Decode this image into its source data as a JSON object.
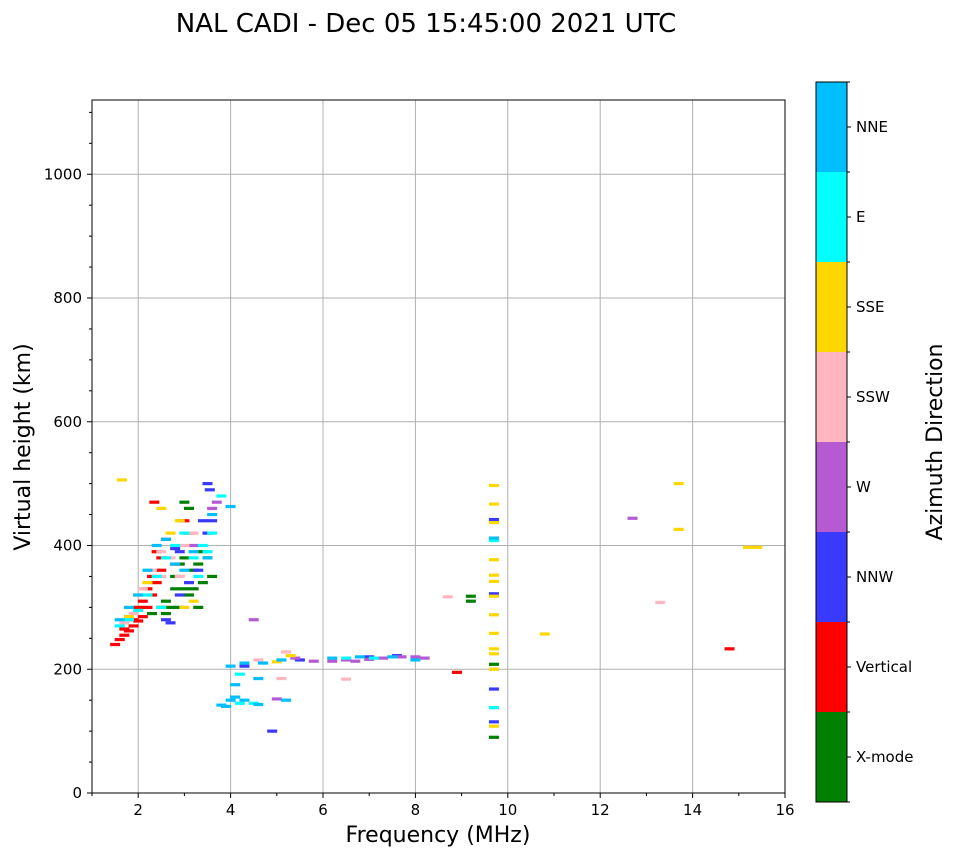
{
  "chart_data": {
    "type": "scatter",
    "title": "NAL CADI - Dec 05 15:45:00 2021 UTC",
    "xlabel": "Frequency (MHz)",
    "ylabel": "Virtual height (km)",
    "xlim": [
      1,
      16
    ],
    "ylim": [
      0,
      1120
    ],
    "xticks": [
      2,
      4,
      6,
      8,
      10,
      12,
      14,
      16
    ],
    "yticks": [
      0,
      200,
      400,
      600,
      800,
      1000
    ],
    "grid": true,
    "colorbar": {
      "label": "Azimuth Direction",
      "position": "right",
      "categories": [
        {
          "name": "X-mode",
          "color": "#008000"
        },
        {
          "name": "Vertical",
          "color": "#ff0000"
        },
        {
          "name": "NNW",
          "color": "#3a3aff"
        },
        {
          "name": "W",
          "color": "#b65ad4"
        },
        {
          "name": "SSW",
          "color": "#ffb6c1"
        },
        {
          "name": "SSE",
          "color": "#ffd700"
        },
        {
          "name": "E",
          "color": "#00ffff"
        },
        {
          "name": "NNE",
          "color": "#00bfff"
        }
      ]
    },
    "series": [
      {
        "name": "X-mode",
        "points": [
          [
            2.3,
            290
          ],
          [
            2.5,
            300
          ],
          [
            2.6,
            310
          ],
          [
            2.7,
            300
          ],
          [
            2.8,
            330
          ],
          [
            2.9,
            300
          ],
          [
            3.0,
            330
          ],
          [
            3.1,
            320
          ],
          [
            3.2,
            360
          ],
          [
            3.3,
            370
          ],
          [
            3.5,
            380
          ],
          [
            2.6,
            290
          ],
          [
            2.8,
            350
          ],
          [
            3.0,
            380
          ],
          [
            3.2,
            330
          ],
          [
            3.4,
            340
          ],
          [
            3.0,
            470
          ],
          [
            3.4,
            390
          ],
          [
            3.6,
            350
          ],
          [
            3.1,
            460
          ],
          [
            9.2,
            318
          ],
          [
            9.2,
            310
          ],
          [
            9.7,
            208
          ],
          [
            9.7,
            90
          ],
          [
            3.3,
            300
          ],
          [
            2.9,
            370
          ]
        ]
      },
      {
        "name": "Vertical",
        "points": [
          [
            1.5,
            240
          ],
          [
            1.6,
            248
          ],
          [
            1.7,
            255
          ],
          [
            1.8,
            262
          ],
          [
            1.9,
            270
          ],
          [
            2.0,
            278
          ],
          [
            2.1,
            285
          ],
          [
            2.2,
            300
          ],
          [
            2.3,
            320
          ],
          [
            2.4,
            340
          ],
          [
            2.5,
            360
          ],
          [
            1.7,
            265
          ],
          [
            1.9,
            280
          ],
          [
            2.1,
            310
          ],
          [
            2.3,
            350
          ],
          [
            2.5,
            380
          ],
          [
            2.0,
            300
          ],
          [
            2.2,
            330
          ],
          [
            2.4,
            390
          ],
          [
            2.6,
            410
          ],
          [
            2.8,
            370
          ],
          [
            3.1,
            420
          ],
          [
            3.0,
            440
          ],
          [
            8.9,
            195
          ],
          [
            14.8,
            233
          ],
          [
            2.35,
            470
          ]
        ]
      },
      {
        "name": "NNW",
        "points": [
          [
            2.6,
            280
          ],
          [
            2.7,
            275
          ],
          [
            2.9,
            320
          ],
          [
            3.1,
            340
          ],
          [
            3.3,
            360
          ],
          [
            3.5,
            420
          ],
          [
            3.5,
            500
          ],
          [
            3.6,
            440
          ],
          [
            3.4,
            440
          ],
          [
            2.9,
            390
          ],
          [
            7.0,
            220
          ],
          [
            7.6,
            222
          ],
          [
            5.5,
            215
          ],
          [
            4.3,
            205
          ],
          [
            9.7,
            442
          ],
          [
            9.7,
            322
          ],
          [
            9.7,
            168
          ],
          [
            9.7,
            115
          ],
          [
            4.9,
            100
          ],
          [
            3.55,
            490
          ],
          [
            2.8,
            395
          ]
        ]
      },
      {
        "name": "W",
        "points": [
          [
            3.7,
            470
          ],
          [
            3.6,
            460
          ],
          [
            4.5,
            280
          ],
          [
            5.8,
            213
          ],
          [
            6.2,
            213
          ],
          [
            6.7,
            213
          ],
          [
            7.0,
            216
          ],
          [
            7.3,
            218
          ],
          [
            7.7,
            220
          ],
          [
            8.0,
            220
          ],
          [
            8.2,
            218
          ],
          [
            6.5,
            215
          ],
          [
            5.0,
            152
          ],
          [
            12.7,
            444
          ],
          [
            5.4,
            218
          ],
          [
            3.2,
            400
          ]
        ]
      },
      {
        "name": "SSW",
        "points": [
          [
            1.7,
            275
          ],
          [
            1.9,
            290
          ],
          [
            2.1,
            330
          ],
          [
            2.3,
            360
          ],
          [
            2.5,
            390
          ],
          [
            2.7,
            380
          ],
          [
            2.9,
            350
          ],
          [
            3.0,
            400
          ],
          [
            3.2,
            420
          ],
          [
            5.2,
            228
          ],
          [
            5.1,
            185
          ],
          [
            6.5,
            184
          ],
          [
            8.7,
            317
          ],
          [
            13.3,
            308
          ],
          [
            4.6,
            215
          ],
          [
            2.5,
            350
          ]
        ]
      },
      {
        "name": "SSE",
        "points": [
          [
            1.65,
            506
          ],
          [
            1.8,
            285
          ],
          [
            2.0,
            320
          ],
          [
            2.2,
            340
          ],
          [
            2.5,
            460
          ],
          [
            2.7,
            420
          ],
          [
            3.0,
            300
          ],
          [
            3.2,
            310
          ],
          [
            5.0,
            212
          ],
          [
            5.3,
            222
          ],
          [
            9.7,
            497
          ],
          [
            9.7,
            467
          ],
          [
            9.7,
            437
          ],
          [
            9.7,
            377
          ],
          [
            9.7,
            352
          ],
          [
            9.7,
            342
          ],
          [
            9.7,
            318
          ],
          [
            9.7,
            288
          ],
          [
            9.7,
            258
          ],
          [
            9.7,
            233
          ],
          [
            9.7,
            225
          ],
          [
            9.7,
            200
          ],
          [
            9.7,
            108
          ],
          [
            10.8,
            257
          ],
          [
            13.7,
            500
          ],
          [
            13.7,
            426
          ],
          [
            15.2,
            397
          ],
          [
            15.4,
            397
          ],
          [
            2.9,
            440
          ]
        ]
      },
      {
        "name": "E",
        "points": [
          [
            1.6,
            270
          ],
          [
            1.8,
            280
          ],
          [
            2.0,
            295
          ],
          [
            2.2,
            320
          ],
          [
            2.4,
            350
          ],
          [
            2.6,
            380
          ],
          [
            2.8,
            400
          ],
          [
            3.0,
            420
          ],
          [
            3.2,
            380
          ],
          [
            3.4,
            400
          ],
          [
            3.6,
            420
          ],
          [
            3.8,
            480
          ],
          [
            4.2,
            192
          ],
          [
            4.2,
            145
          ],
          [
            4.5,
            145
          ],
          [
            6.5,
            218
          ],
          [
            7.1,
            218
          ],
          [
            9.7,
            408
          ],
          [
            9.7,
            138
          ],
          [
            3.3,
            350
          ],
          [
            2.5,
            300
          ],
          [
            3.5,
            390
          ]
        ]
      },
      {
        "name": "NNE",
        "points": [
          [
            1.6,
            280
          ],
          [
            1.8,
            300
          ],
          [
            2.0,
            320
          ],
          [
            2.2,
            360
          ],
          [
            2.4,
            400
          ],
          [
            2.6,
            410
          ],
          [
            2.8,
            370
          ],
          [
            3.0,
            360
          ],
          [
            3.2,
            390
          ],
          [
            3.5,
            380
          ],
          [
            3.6,
            450
          ],
          [
            4.0,
            463
          ],
          [
            4.1,
            175
          ],
          [
            4.1,
            155
          ],
          [
            4.3,
            150
          ],
          [
            3.9,
            140
          ],
          [
            4.0,
            205
          ],
          [
            4.3,
            210
          ],
          [
            4.7,
            210
          ],
          [
            5.1,
            215
          ],
          [
            5.2,
            150
          ],
          [
            4.6,
            185
          ],
          [
            6.2,
            218
          ],
          [
            6.8,
            220
          ],
          [
            7.5,
            220
          ],
          [
            8.0,
            215
          ],
          [
            9.7,
            412
          ],
          [
            3.8,
            142
          ],
          [
            4.0,
            150
          ],
          [
            4.6,
            143
          ]
        ]
      }
    ]
  }
}
